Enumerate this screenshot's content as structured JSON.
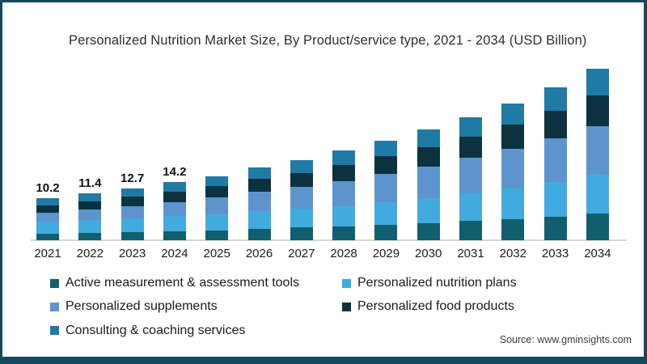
{
  "frame": {
    "border_color": "#16485e",
    "background": "#ffffff"
  },
  "header": {
    "title": "Personalized Nutrition Market Size, By Product/service type, 2021 - 2034 (USD Billion)"
  },
  "footer": {
    "source": "Source: www.gminsights.com"
  },
  "chart_data": {
    "type": "bar",
    "stacked": true,
    "title": "Personalized Nutrition Market Size, By Product/service type, 2021 - 2034 (USD Billion)",
    "unit": "USD Billion",
    "xlabel": "",
    "ylabel": "",
    "ylim": [
      0,
      45
    ],
    "grid": false,
    "legend_position": "bottom-left",
    "axis_color": "#d7d7d7",
    "categories": [
      "2021",
      "2022",
      "2023",
      "2024",
      "2025",
      "2026",
      "2027",
      "2028",
      "2029",
      "2030",
      "2031",
      "2032",
      "2033",
      "2034"
    ],
    "totals": [
      10.2,
      11.4,
      12.7,
      14.2,
      15.7,
      17.8,
      19.6,
      21.9,
      24.3,
      27.1,
      30.1,
      33.5,
      37.4,
      41.9
    ],
    "value_labels": [
      "10.2",
      "11.4",
      "12.7",
      "14.2"
    ],
    "series": [
      {
        "name": "Active measurement & assessment tools",
        "color": "#115e6e",
        "values": [
          1.6,
          1.8,
          2.0,
          2.2,
          2.4,
          2.8,
          3.1,
          3.4,
          3.8,
          4.2,
          4.7,
          5.2,
          5.8,
          6.5
        ]
      },
      {
        "name": "Personalized nutrition plans",
        "color": "#41abdf",
        "values": [
          3.0,
          3.2,
          3.4,
          3.7,
          4.0,
          4.3,
          4.6,
          5.0,
          5.5,
          6.1,
          6.8,
          7.6,
          8.5,
          9.5
        ]
      },
      {
        "name": "Personalized supplements",
        "color": "#5d94ce",
        "values": [
          2.2,
          2.6,
          3.0,
          3.5,
          4.0,
          4.7,
          5.3,
          6.1,
          6.9,
          7.7,
          8.6,
          9.6,
          10.7,
          11.9
        ]
      },
      {
        "name": "Personalized food products",
        "color": "#0c3240",
        "values": [
          1.8,
          2.0,
          2.2,
          2.5,
          2.8,
          3.2,
          3.5,
          3.9,
          4.3,
          4.8,
          5.3,
          5.9,
          6.6,
          7.5
        ]
      },
      {
        "name": "Consulting & coaching services",
        "color": "#1f7aa6",
        "values": [
          1.6,
          1.8,
          2.1,
          2.3,
          2.5,
          2.8,
          3.1,
          3.5,
          3.8,
          4.3,
          4.7,
          5.2,
          5.8,
          6.5
        ]
      }
    ]
  }
}
